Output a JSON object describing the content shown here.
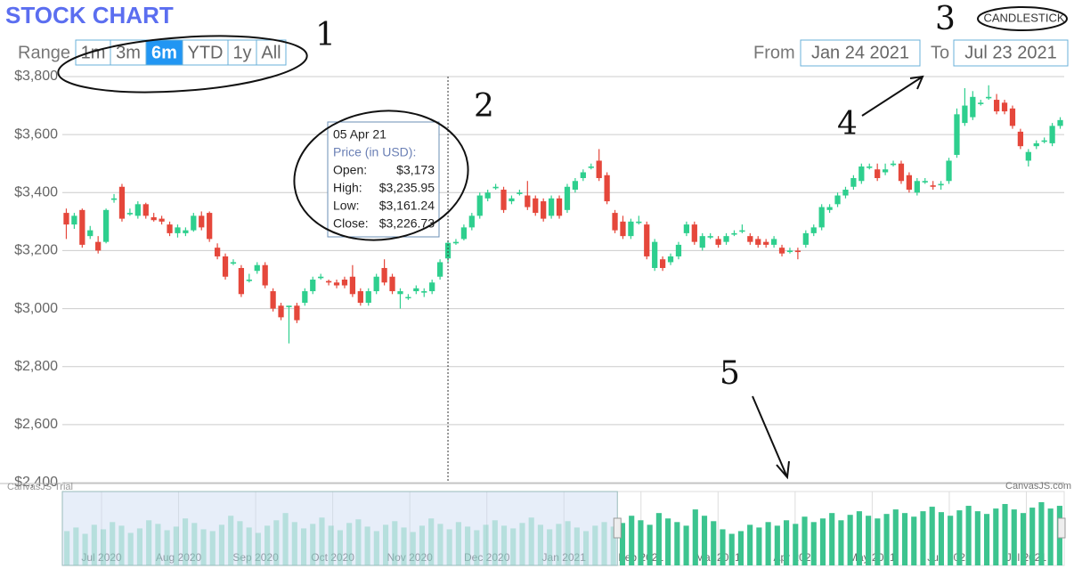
{
  "header": {
    "title": "STOCK CHART",
    "range_label": "Range",
    "range_buttons": [
      "1m",
      "3m",
      "6m",
      "YTD",
      "1y",
      "All"
    ],
    "active_range": "6m",
    "from_label": "From",
    "from_value": "Jan 24 2021",
    "to_label": "To",
    "to_value": "Jul 23 2021",
    "chart_type_button": "CANDLESTICK"
  },
  "chart_data": {
    "type": "candlestick",
    "ohlc": [
      [
        3330,
        3345,
        3240,
        3290
      ],
      [
        3290,
        3330,
        3275,
        3320
      ],
      [
        3340,
        3345,
        3210,
        3220
      ],
      [
        3250,
        3285,
        3240,
        3270
      ],
      [
        3230,
        3250,
        3190,
        3200
      ],
      [
        3230,
        3345,
        3225,
        3340
      ],
      [
        3375,
        3395,
        3365,
        3380
      ],
      [
        3420,
        3430,
        3300,
        3310
      ],
      [
        3325,
        3345,
        3320,
        3330
      ],
      [
        3320,
        3370,
        3310,
        3360
      ],
      [
        3360,
        3365,
        3310,
        3320
      ],
      [
        3315,
        3330,
        3300,
        3305
      ],
      [
        3310,
        3320,
        3290,
        3300
      ],
      [
        3290,
        3300,
        3250,
        3260
      ],
      [
        3260,
        3290,
        3245,
        3280
      ],
      [
        3260,
        3280,
        3250,
        3270
      ],
      [
        3270,
        3330,
        3265,
        3320
      ],
      [
        3320,
        3335,
        3270,
        3280
      ],
      [
        3330,
        3335,
        3230,
        3240
      ],
      [
        3210,
        3225,
        3170,
        3180
      ],
      [
        3180,
        3190,
        3100,
        3110
      ],
      [
        3155,
        3170,
        3150,
        3160
      ],
      [
        3140,
        3150,
        3040,
        3050
      ],
      [
        3095,
        3120,
        3090,
        3100
      ],
      [
        3130,
        3160,
        3120,
        3150
      ],
      [
        3150,
        3160,
        3070,
        3080
      ],
      [
        3060,
        3070,
        2990,
        3000
      ],
      [
        3010,
        3020,
        2960,
        2970
      ],
      [
        3005,
        3010,
        2880,
        3010
      ],
      [
        3010,
        3020,
        2950,
        2960
      ],
      [
        3020,
        3070,
        3010,
        3060
      ],
      [
        3060,
        3110,
        3050,
        3100
      ],
      [
        3105,
        3120,
        3100,
        3110
      ],
      [
        3095,
        3100,
        3080,
        3090
      ],
      [
        3090,
        3100,
        3070,
        3080
      ],
      [
        3100,
        3110,
        3070,
        3080
      ],
      [
        3110,
        3150,
        3040,
        3050
      ],
      [
        3060,
        3070,
        3010,
        3020
      ],
      [
        3020,
        3070,
        3010,
        3060
      ],
      [
        3060,
        3120,
        3050,
        3110
      ],
      [
        3140,
        3170,
        3080,
        3090
      ],
      [
        3110,
        3120,
        3050,
        3060
      ],
      [
        3050,
        3070,
        3000,
        3060
      ],
      [
        3040,
        3050,
        3030,
        3040
      ],
      [
        3060,
        3080,
        3050,
        3070
      ],
      [
        3055,
        3070,
        3040,
        3060
      ],
      [
        3060,
        3100,
        3050,
        3090
      ],
      [
        3110,
        3170,
        3100,
        3160
      ],
      [
        3173,
        3235.95,
        3161.24,
        3226.73
      ],
      [
        3225,
        3240,
        3220,
        3230
      ],
      [
        3240,
        3290,
        3235,
        3280
      ],
      [
        3280,
        3330,
        3270,
        3320
      ],
      [
        3320,
        3400,
        3310,
        3390
      ],
      [
        3380,
        3410,
        3370,
        3400
      ],
      [
        3415,
        3430,
        3410,
        3420
      ],
      [
        3410,
        3420,
        3330,
        3340
      ],
      [
        3370,
        3390,
        3360,
        3380
      ],
      [
        3395,
        3410,
        3390,
        3400
      ],
      [
        3390,
        3440,
        3340,
        3350
      ],
      [
        3380,
        3390,
        3320,
        3330
      ],
      [
        3370,
        3380,
        3300,
        3310
      ],
      [
        3320,
        3390,
        3310,
        3380
      ],
      [
        3380,
        3390,
        3310,
        3320
      ],
      [
        3340,
        3430,
        3330,
        3420
      ],
      [
        3410,
        3450,
        3400,
        3440
      ],
      [
        3450,
        3480,
        3440,
        3470
      ],
      [
        3485,
        3500,
        3480,
        3490
      ],
      [
        3510,
        3550,
        3440,
        3450
      ],
      [
        3460,
        3470,
        3360,
        3370
      ],
      [
        3330,
        3340,
        3260,
        3270
      ],
      [
        3300,
        3320,
        3240,
        3250
      ],
      [
        3250,
        3310,
        3240,
        3300
      ],
      [
        3295,
        3320,
        3290,
        3300
      ],
      [
        3290,
        3300,
        3170,
        3180
      ],
      [
        3140,
        3240,
        3130,
        3230
      ],
      [
        3170,
        3180,
        3130,
        3140
      ],
      [
        3160,
        3190,
        3150,
        3180
      ],
      [
        3180,
        3230,
        3170,
        3220
      ],
      [
        3260,
        3300,
        3250,
        3290
      ],
      [
        3290,
        3300,
        3220,
        3230
      ],
      [
        3210,
        3260,
        3200,
        3250
      ],
      [
        3245,
        3260,
        3240,
        3250
      ],
      [
        3240,
        3250,
        3210,
        3220
      ],
      [
        3230,
        3260,
        3220,
        3250
      ],
      [
        3255,
        3270,
        3250,
        3260
      ],
      [
        3265,
        3290,
        3260,
        3270
      ],
      [
        3250,
        3260,
        3220,
        3230
      ],
      [
        3240,
        3250,
        3210,
        3220
      ],
      [
        3230,
        3240,
        3210,
        3220
      ],
      [
        3220,
        3250,
        3210,
        3240
      ],
      [
        3210,
        3220,
        3180,
        3190
      ],
      [
        3195,
        3210,
        3190,
        3200
      ],
      [
        3200,
        3210,
        3170,
        3195
      ],
      [
        3220,
        3270,
        3210,
        3260
      ],
      [
        3260,
        3290,
        3250,
        3280
      ],
      [
        3280,
        3360,
        3270,
        3350
      ],
      [
        3340,
        3360,
        3330,
        3350
      ],
      [
        3360,
        3400,
        3350,
        3390
      ],
      [
        3390,
        3420,
        3380,
        3410
      ],
      [
        3420,
        3460,
        3410,
        3450
      ],
      [
        3440,
        3500,
        3430,
        3490
      ],
      [
        3485,
        3500,
        3480,
        3490
      ],
      [
        3480,
        3500,
        3440,
        3450
      ],
      [
        3470,
        3500,
        3460,
        3480
      ],
      [
        3495,
        3510,
        3490,
        3500
      ],
      [
        3500,
        3510,
        3430,
        3440
      ],
      [
        3460,
        3470,
        3400,
        3410
      ],
      [
        3400,
        3450,
        3390,
        3440
      ],
      [
        3435,
        3450,
        3430,
        3440
      ],
      [
        3425,
        3440,
        3410,
        3420
      ],
      [
        3425,
        3440,
        3410,
        3430
      ],
      [
        3440,
        3520,
        3430,
        3510
      ],
      [
        3530,
        3690,
        3520,
        3670
      ],
      [
        3640,
        3760,
        3630,
        3700
      ],
      [
        3660,
        3750,
        3650,
        3730
      ],
      [
        3705,
        3720,
        3700,
        3710
      ],
      [
        3725,
        3770,
        3720,
        3730
      ],
      [
        3720,
        3740,
        3670,
        3680
      ],
      [
        3710,
        3720,
        3670,
        3680
      ],
      [
        3690,
        3700,
        3620,
        3630
      ],
      [
        3610,
        3620,
        3550,
        3560
      ],
      [
        3510,
        3550,
        3490,
        3540
      ],
      [
        3560,
        3580,
        3550,
        3570
      ],
      [
        3575,
        3590,
        3570,
        3580
      ],
      [
        3570,
        3640,
        3560,
        3630
      ],
      [
        3630,
        3660,
        3620,
        3650
      ]
    ],
    "up_color": "#2ecf8e",
    "down_color": "#e5473b",
    "ylim": [
      2400,
      3800
    ],
    "yticks": [
      {
        "value": 2400,
        "label": "$2,400"
      },
      {
        "value": 2600,
        "label": "$2,600"
      },
      {
        "value": 2800,
        "label": "$2,800"
      },
      {
        "value": 3000,
        "label": "$3,000"
      },
      {
        "value": 3200,
        "label": "$3,200"
      },
      {
        "value": 3400,
        "label": "$3,400"
      },
      {
        "value": 3600,
        "label": "$3,600"
      },
      {
        "value": 3800,
        "label": "$3,800"
      }
    ],
    "grid": true,
    "tooltip": {
      "date": "05 Apr 21",
      "heading": "Price (in USD):",
      "rows": [
        {
          "label": "Open:",
          "value": 3173,
          "value_label": "$3,173"
        },
        {
          "label": "High:",
          "value": 3235.95,
          "value_label": "$3,235.95"
        },
        {
          "label": "Low:",
          "value": 3161.24,
          "value_label": "$3,161.24"
        },
        {
          "label": "Close:",
          "value": 3226.73,
          "value_label": "$3,226.73"
        }
      ]
    },
    "navigator": {
      "type": "bar",
      "color": "#3cc48f",
      "values": [
        38,
        42,
        35,
        45,
        40,
        48,
        44,
        36,
        41,
        50,
        46,
        39,
        43,
        52,
        47,
        40,
        38,
        45,
        55,
        49,
        42,
        36,
        44,
        50,
        58,
        48,
        41,
        46,
        53,
        44,
        39,
        47,
        51,
        43,
        38,
        45,
        49,
        42,
        37,
        44,
        52,
        46,
        40,
        48,
        43,
        39,
        45,
        50,
        44,
        41,
        47,
        53,
        45,
        40,
        46,
        49,
        42,
        38,
        44,
        48,
        43,
        47,
        55,
        50,
        45,
        58,
        52,
        48,
        44,
        62,
        55,
        49,
        40,
        35,
        38,
        45,
        42,
        48,
        44,
        50,
        46,
        54,
        48,
        52,
        58,
        50,
        56,
        60,
        55,
        52,
        57,
        62,
        58,
        54,
        60,
        65,
        59,
        55,
        61,
        66,
        60,
        57,
        63,
        68,
        62,
        58,
        64,
        70,
        63,
        66
      ],
      "x_labels": [
        "Jul 2020",
        "Aug 2020",
        "Sep 2020",
        "Oct 2020",
        "Nov 2020",
        "Dec 2020",
        "Jan 2021",
        "Feb 2021",
        "Mar 2021",
        "Apr 2021",
        "May 2021",
        "Jun 2021",
        "Jul 2021"
      ]
    },
    "credits": [
      "CanvasJS Trial",
      "CanvasJS.com"
    ]
  },
  "annotations": [
    "1",
    "2",
    "3",
    "4",
    "5"
  ]
}
